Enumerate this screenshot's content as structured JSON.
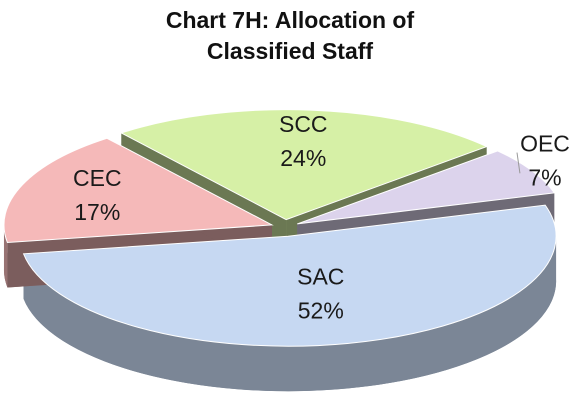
{
  "chart_data": {
    "type": "pie",
    "title": "Chart 7H: Allocation of",
    "subtitle": "Classified Staff",
    "categories": [
      "SCC",
      "OEC",
      "SAC",
      "CEC"
    ],
    "values": [
      24,
      7,
      52,
      17
    ],
    "value_labels": [
      "24%",
      "7%",
      "52%",
      "17%"
    ],
    "colors": [
      "#d6f0a6",
      "#dcd3ec",
      "#c6d8f2",
      "#f5b9b9"
    ]
  }
}
